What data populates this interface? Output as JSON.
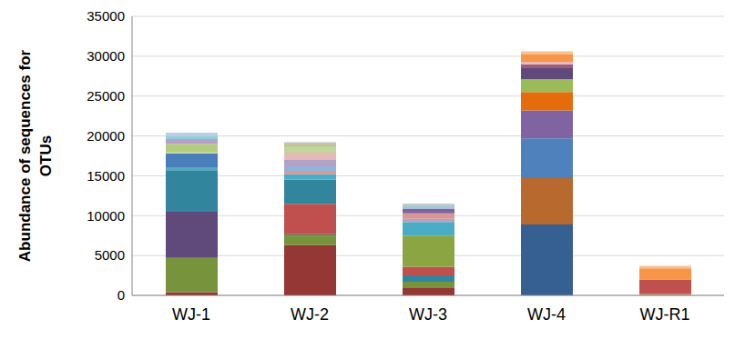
{
  "chart_data": {
    "type": "bar",
    "stacked": true,
    "grid": true,
    "y_label": "Abundance of sequences for OTUs",
    "categories": [
      "WJ-1",
      "WJ-2",
      "WJ-3",
      "WJ-4",
      "WJ-R1"
    ],
    "ylim": [
      0,
      35000
    ],
    "yticks": [
      0,
      5000,
      10000,
      15000,
      20000,
      25000,
      30000,
      35000
    ],
    "series": [
      {
        "values": [
          400,
          6300,
          900,
          8900,
          200
        ],
        "colors": [
          "#953735",
          "#953735",
          "#953735",
          "#376092",
          "#C09060"
        ]
      },
      {
        "values": [
          4300,
          1200,
          800,
          5800,
          1800
        ],
        "colors": [
          "#77933C",
          "#77933C",
          "#77933C",
          "#B7692E",
          "#C0504D"
        ]
      },
      {
        "values": [
          5800,
          200,
          800,
          5000,
          1400
        ],
        "colors": [
          "#604A7B",
          "#5F6B4E",
          "#31859C",
          "#4F81BD",
          "#F79646"
        ]
      },
      {
        "values": [
          5200,
          3800,
          1100,
          3500,
          300
        ],
        "colors": [
          "#31859C",
          "#C0504D",
          "#C0504D",
          "#8064A2",
          "#FAC090"
        ]
      },
      {
        "values": [
          300,
          3000,
          3900,
          2300,
          null
        ],
        "colors": [
          "#4BACC6",
          "#31859C",
          "#8AA542",
          "#E46C0A",
          null
        ]
      },
      {
        "values": [
          1800,
          700,
          1700,
          1600,
          null
        ],
        "colors": [
          "#4A7EBB",
          "#4BACC6",
          "#4BACC6",
          "#9BBB59",
          null
        ]
      },
      {
        "values": [
          200,
          300,
          400,
          1400,
          null
        ],
        "colors": [
          "#C3D69B",
          "#D99694",
          "#B3A2C7",
          "#604A7B",
          null
        ]
      },
      {
        "values": [
          1000,
          700,
          700,
          500,
          null
        ],
        "colors": [
          "#B3CC82",
          "#95B3D7",
          "#D99694",
          "#A05A7A",
          null
        ]
      },
      {
        "values": [
          600,
          800,
          600,
          300,
          null
        ],
        "colors": [
          "#B3A2C7",
          "#B3A2C7",
          "#8064A2",
          "#E6B9B8",
          null
        ]
      },
      {
        "values": [
          400,
          900,
          300,
          900,
          null
        ],
        "colors": [
          "#93CDDD",
          "#E6B9B8",
          "#93CDDD",
          "#F79646",
          null
        ]
      },
      {
        "values": [
          400,
          800,
          300,
          400,
          null
        ],
        "colors": [
          "#B9CDE5",
          "#C3D69B",
          "#BFBFBF",
          "#FAC090",
          null
        ]
      },
      {
        "values": [
          null,
          300,
          null,
          null,
          null
        ],
        "colors": [
          null,
          "#C4BD97",
          null,
          null,
          null
        ]
      },
      {
        "values": [
          null,
          200,
          null,
          null,
          null
        ],
        "colors": [
          null,
          "#BFBFBF",
          null,
          null,
          null
        ]
      }
    ]
  }
}
